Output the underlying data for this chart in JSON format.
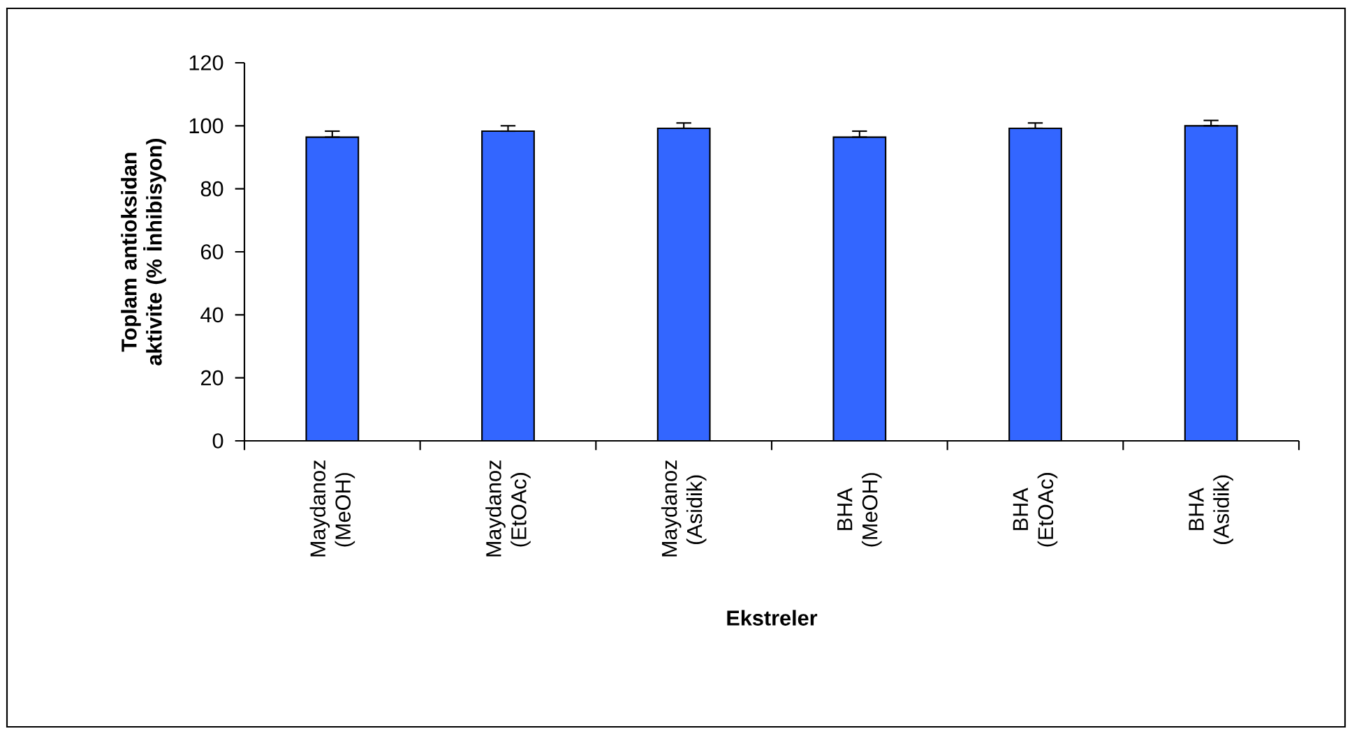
{
  "chart_data": {
    "type": "bar",
    "xlabel": "Ekstreler",
    "ylabel": "Toplam antioksidan aktivite (% İnhibisyon)",
    "categories": [
      "Maydanoz (MeOH)",
      "Maydanoz (EtOAc)",
      "Maydanoz (Asidik)",
      "BHA (MeOH)",
      "BHA (EtOAc)",
      "BHA (Asidik)"
    ],
    "values": [
      96.4,
      98.3,
      99.2,
      96.4,
      99.2,
      100.0
    ],
    "errors": [
      [
        96.4,
        98.3
      ],
      [
        98.3,
        100.0
      ],
      [
        99.2,
        100.9
      ],
      [
        96.4,
        98.3
      ],
      [
        99.2,
        100.9
      ],
      [
        100.0,
        101.7
      ]
    ],
    "color": "#3366ff",
    "ylim": [
      0,
      120
    ],
    "yticks": [
      0,
      20,
      40,
      60,
      80,
      100,
      120
    ],
    "grid": false
  }
}
